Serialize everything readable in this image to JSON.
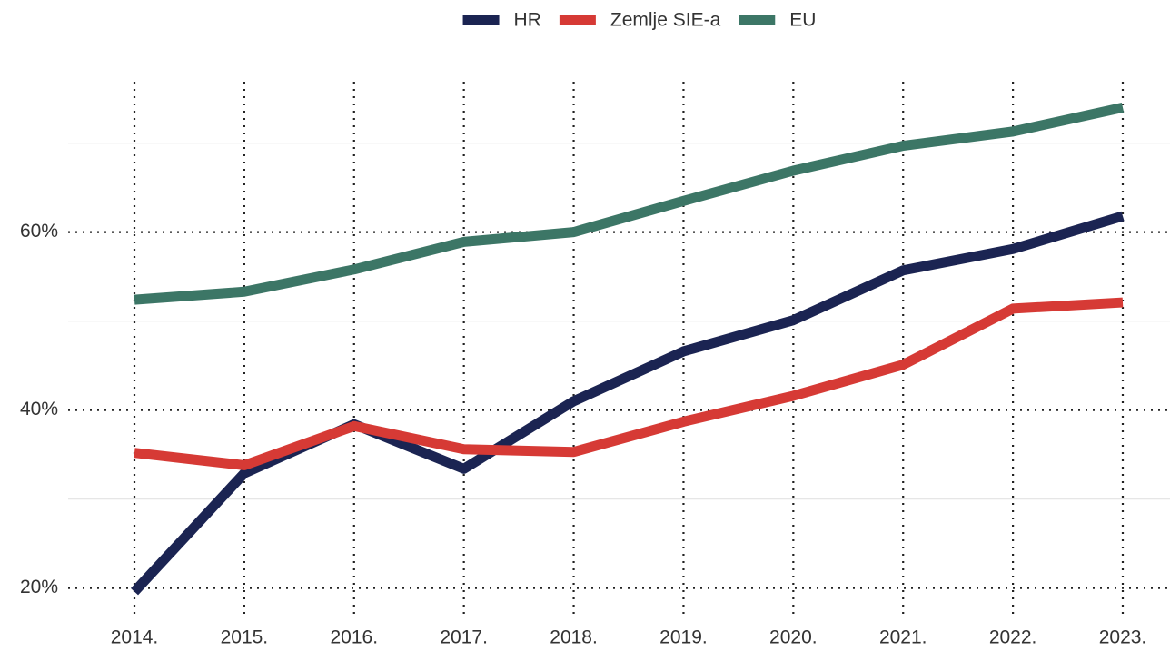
{
  "chart_data": {
    "type": "line",
    "categories": [
      "2014.",
      "2015.",
      "2016.",
      "2017.",
      "2018.",
      "2019.",
      "2020.",
      "2021.",
      "2022.",
      "2023."
    ],
    "series": [
      {
        "name": "HR",
        "color": "#1b2452",
        "values": [
          19.6,
          32.9,
          38.4,
          33.4,
          41.0,
          46.6,
          50.1,
          55.7,
          58.1,
          61.8
        ]
      },
      {
        "name": "Zemlje SIE-a",
        "color": "#d63a35",
        "values": [
          35.2,
          33.8,
          38.2,
          35.6,
          35.3,
          38.7,
          41.6,
          45.1,
          51.4,
          52.1
        ]
      },
      {
        "name": "EU",
        "color": "#3c7666",
        "values": [
          52.4,
          53.3,
          55.8,
          58.9,
          60.0,
          63.5,
          66.9,
          69.7,
          71.3,
          74.0
        ]
      }
    ],
    "ylim": [
      16.7,
      76.9
    ],
    "yticks": [
      {
        "value": 20,
        "label": "20%"
      },
      {
        "value": 40,
        "label": "40%"
      },
      {
        "value": 60,
        "label": "60%"
      }
    ],
    "minor_yticks": [
      30,
      50,
      70
    ],
    "grid": true,
    "legend": "top"
  }
}
